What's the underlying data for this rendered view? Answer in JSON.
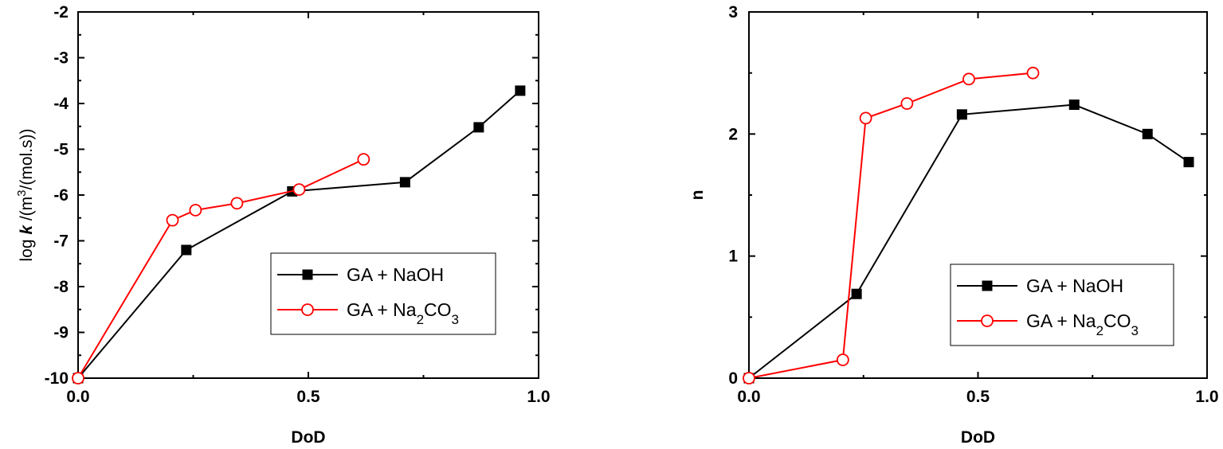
{
  "chart_data": [
    {
      "type": "line",
      "xlabel": "DoD",
      "ylabel": {
        "prefix": "log ",
        "k": "k",
        "unit_open": " /(m",
        "unit_sup": "3",
        "unit_close": "/(mol.s))"
      },
      "xlim": [
        0.0,
        1.0
      ],
      "ylim": [
        -10,
        -2
      ],
      "xticks": [
        0.0,
        0.5,
        1.0
      ],
      "xtick_labels": [
        "0.0",
        "0.5",
        "1.0"
      ],
      "yticks": [
        -10,
        -9,
        -8,
        -7,
        -6,
        -5,
        -4,
        -3,
        -2
      ],
      "ytick_labels": [
        "-10",
        "-9",
        "-8",
        "-7",
        "-6",
        "-5",
        "-4",
        "-3",
        "-2"
      ],
      "grid": false,
      "legend_position": "lower-right",
      "series": [
        {
          "name": "GA + NaOH",
          "name_parts": {
            "main": "GA + NaOH",
            "sub1": "",
            "mid": "",
            "sub2": ""
          },
          "color": "#000000",
          "marker": "filled-square",
          "x": [
            0.0,
            0.235,
            0.465,
            0.71,
            0.87,
            0.96
          ],
          "y": [
            -10.0,
            -7.2,
            -5.92,
            -5.72,
            -4.52,
            -3.72
          ]
        },
        {
          "name": "GA + Na2CO3",
          "name_parts": {
            "main": "GA + Na",
            "sub1": "2",
            "mid": "CO",
            "sub2": "3"
          },
          "color": "#ff0000",
          "marker": "open-circle",
          "x": [
            0.0,
            0.205,
            0.255,
            0.345,
            0.48,
            0.62
          ],
          "y": [
            -10.0,
            -6.55,
            -6.33,
            -6.18,
            -5.88,
            -5.22
          ]
        }
      ]
    },
    {
      "type": "line",
      "xlabel": "DoD",
      "ylabel": "n",
      "xlim": [
        0.0,
        1.0
      ],
      "ylim": [
        0,
        3
      ],
      "xticks": [
        0.0,
        0.5,
        1.0
      ],
      "xtick_labels": [
        "0.0",
        "0.5",
        "1.0"
      ],
      "yticks": [
        0,
        1,
        2,
        3
      ],
      "ytick_labels": [
        "0",
        "1",
        "2",
        "3"
      ],
      "grid": false,
      "legend_position": "lower-right",
      "series": [
        {
          "name": "GA + NaOH",
          "name_parts": {
            "main": "GA + NaOH",
            "sub1": "",
            "mid": "",
            "sub2": ""
          },
          "color": "#000000",
          "marker": "filled-square",
          "x": [
            0.0,
            0.235,
            0.465,
            0.71,
            0.87,
            0.96
          ],
          "y": [
            0.0,
            0.69,
            2.16,
            2.24,
            2.0,
            1.77
          ]
        },
        {
          "name": "GA + Na2CO3",
          "name_parts": {
            "main": "GA + Na",
            "sub1": "2",
            "mid": "CO",
            "sub2": "3"
          },
          "color": "#ff0000",
          "marker": "open-circle",
          "x": [
            0.0,
            0.205,
            0.255,
            0.345,
            0.48,
            0.62
          ],
          "y": [
            0.0,
            0.15,
            2.13,
            2.25,
            2.45,
            2.5
          ]
        }
      ]
    }
  ]
}
